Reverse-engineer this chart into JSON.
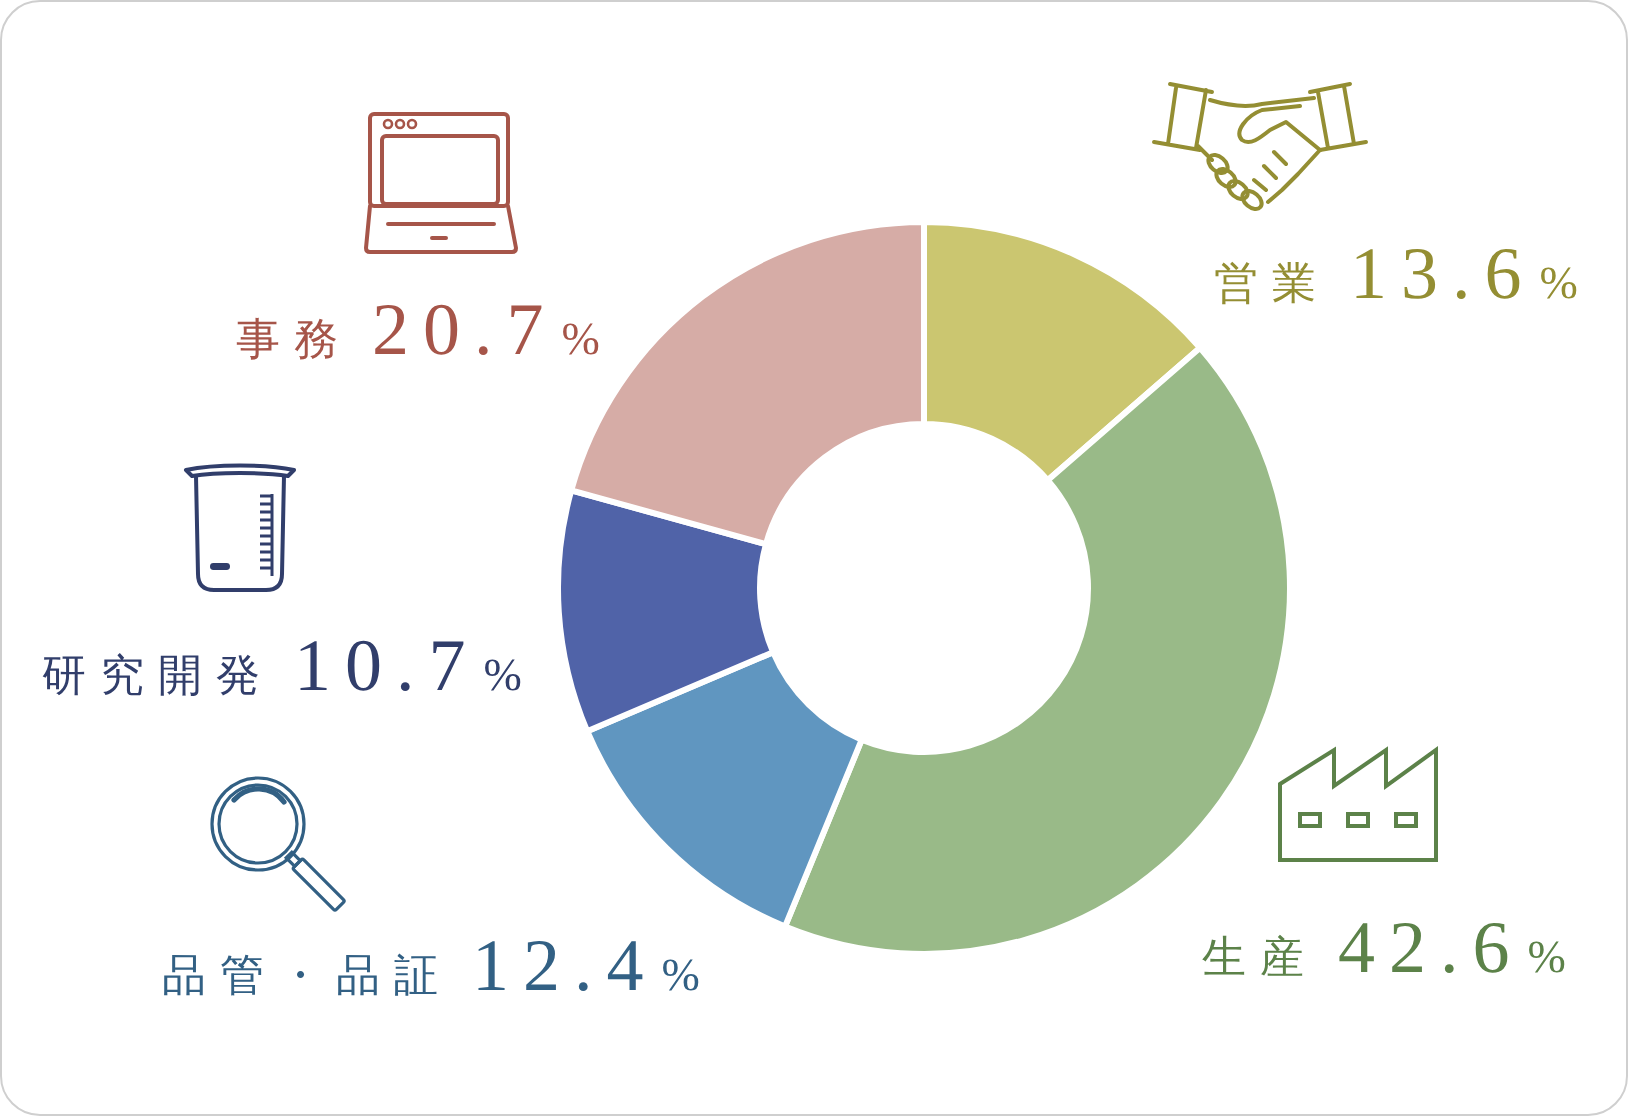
{
  "chart_data": {
    "type": "donut",
    "categories": [
      "営業",
      "生産",
      "品管・品証",
      "研究開発",
      "事務"
    ],
    "values": [
      13.6,
      42.6,
      12.4,
      10.7,
      20.7
    ],
    "value_labels": [
      "13.6%",
      "42.6%",
      "12.4%",
      "10.7%",
      "20.7%"
    ],
    "colors": [
      "#cbc670",
      "#99ba88",
      "#6096c0",
      "#5063a8",
      "#d6aca6"
    ]
  }
}
